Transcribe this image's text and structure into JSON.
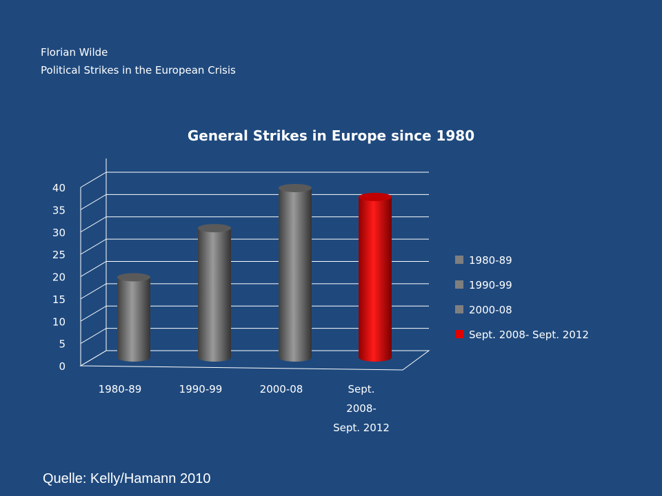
{
  "header": {
    "author": "Florian Wilde",
    "talk_title": "Political Strikes in the European Crisis"
  },
  "source": "Quelle: Kelly/Hamann 2010",
  "colors": {
    "background": "#1f497d",
    "gray_bar": "#7f7f7f",
    "red_bar": "#e00000",
    "grid": "#ffffff"
  },
  "chart_data": {
    "type": "bar",
    "title": "General Strikes in Europe since 1980",
    "categories": [
      "1980-89",
      "1990-99",
      "2000-08",
      "Sept. 2008- Sept. 2012"
    ],
    "category_labels": [
      [
        "1980-89"
      ],
      [
        "1990-99"
      ],
      [
        "2000-08"
      ],
      [
        "Sept.",
        "2008-",
        "Sept. 2012"
      ]
    ],
    "values": [
      18,
      29,
      38,
      36
    ],
    "bar_colors": [
      "#7f7f7f",
      "#7f7f7f",
      "#7f7f7f",
      "#e00000"
    ],
    "legend": [
      "1980-89",
      "1990-99",
      "2000-08",
      "Sept. 2008- Sept. 2012"
    ],
    "legend_position": "right",
    "yticks": [
      0,
      5,
      10,
      15,
      20,
      25,
      30,
      35,
      40
    ],
    "ylim": [
      0,
      40
    ],
    "xlabel": "",
    "ylabel": "",
    "grid": true,
    "style": "3d-cylinder"
  }
}
